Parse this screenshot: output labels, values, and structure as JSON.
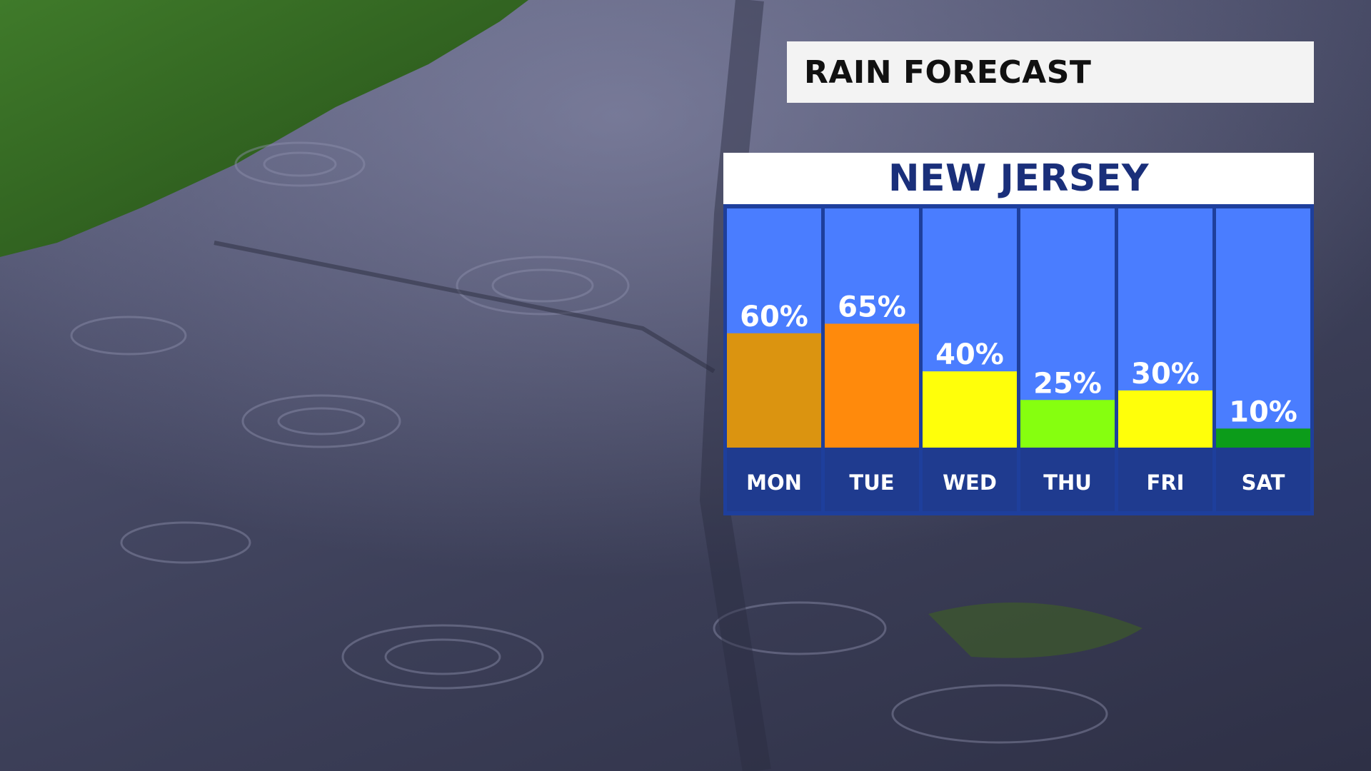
{
  "title": "RAIN FORECAST",
  "region": "NEW JERSEY",
  "colors": {
    "panel_border": "#1e3f9c",
    "column_bg": "#4a7dff",
    "label_bg": "#1f3b8f",
    "region_text": "#1a2f7a",
    "title_bg": "#f3f3f3"
  },
  "chart_data": {
    "type": "bar",
    "title": "",
    "categories": [
      "MON",
      "TUE",
      "WED",
      "THU",
      "FRI",
      "SAT"
    ],
    "values": [
      60,
      65,
      40,
      25,
      30,
      10
    ],
    "value_labels": [
      "60%",
      "65%",
      "40%",
      "25%",
      "30%",
      "10%"
    ],
    "bar_colors": [
      "#db9410",
      "#ff8a0c",
      "#ffff0a",
      "#86ff0f",
      "#ffff0a",
      "#0c9c1a"
    ],
    "ylim": [
      0,
      100
    ],
    "grid": false,
    "legend": "none"
  }
}
